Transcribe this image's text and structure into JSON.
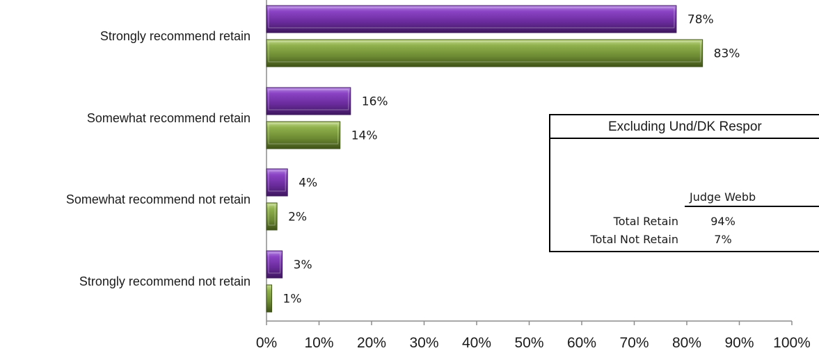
{
  "chart_data": {
    "type": "bar",
    "orientation": "horizontal",
    "categories": [
      "Strongly recommend retain",
      "Somewhat recommend retain",
      "Somewhat recommend not retain",
      "Strongly recommend not retain"
    ],
    "series": [
      {
        "values": [
          78,
          16,
          4,
          3
        ],
        "color": "#7030a0"
      },
      {
        "values": [
          83,
          14,
          2,
          1
        ],
        "color": "#77933c"
      }
    ],
    "data_labels": [
      [
        "78%",
        "16%",
        "4%",
        "3%"
      ],
      [
        "83%",
        "14%",
        "2%",
        "1%"
      ]
    ],
    "x_ticks": [
      "0%",
      "10%",
      "20%",
      "30%",
      "40%",
      "50%",
      "60%",
      "70%",
      "80%",
      "90%",
      "100%"
    ],
    "xlim": [
      0,
      100
    ],
    "xlabel": "",
    "ylabel": "",
    "title": "",
    "grid": false,
    "legend": false
  },
  "summary_box": {
    "title": "Excluding Und/DK Respor",
    "column_header": "Judge Webb",
    "rows": [
      {
        "label": "Total Retain",
        "value": "94%"
      },
      {
        "label": "Total Not Retain",
        "value": "7%"
      }
    ]
  }
}
